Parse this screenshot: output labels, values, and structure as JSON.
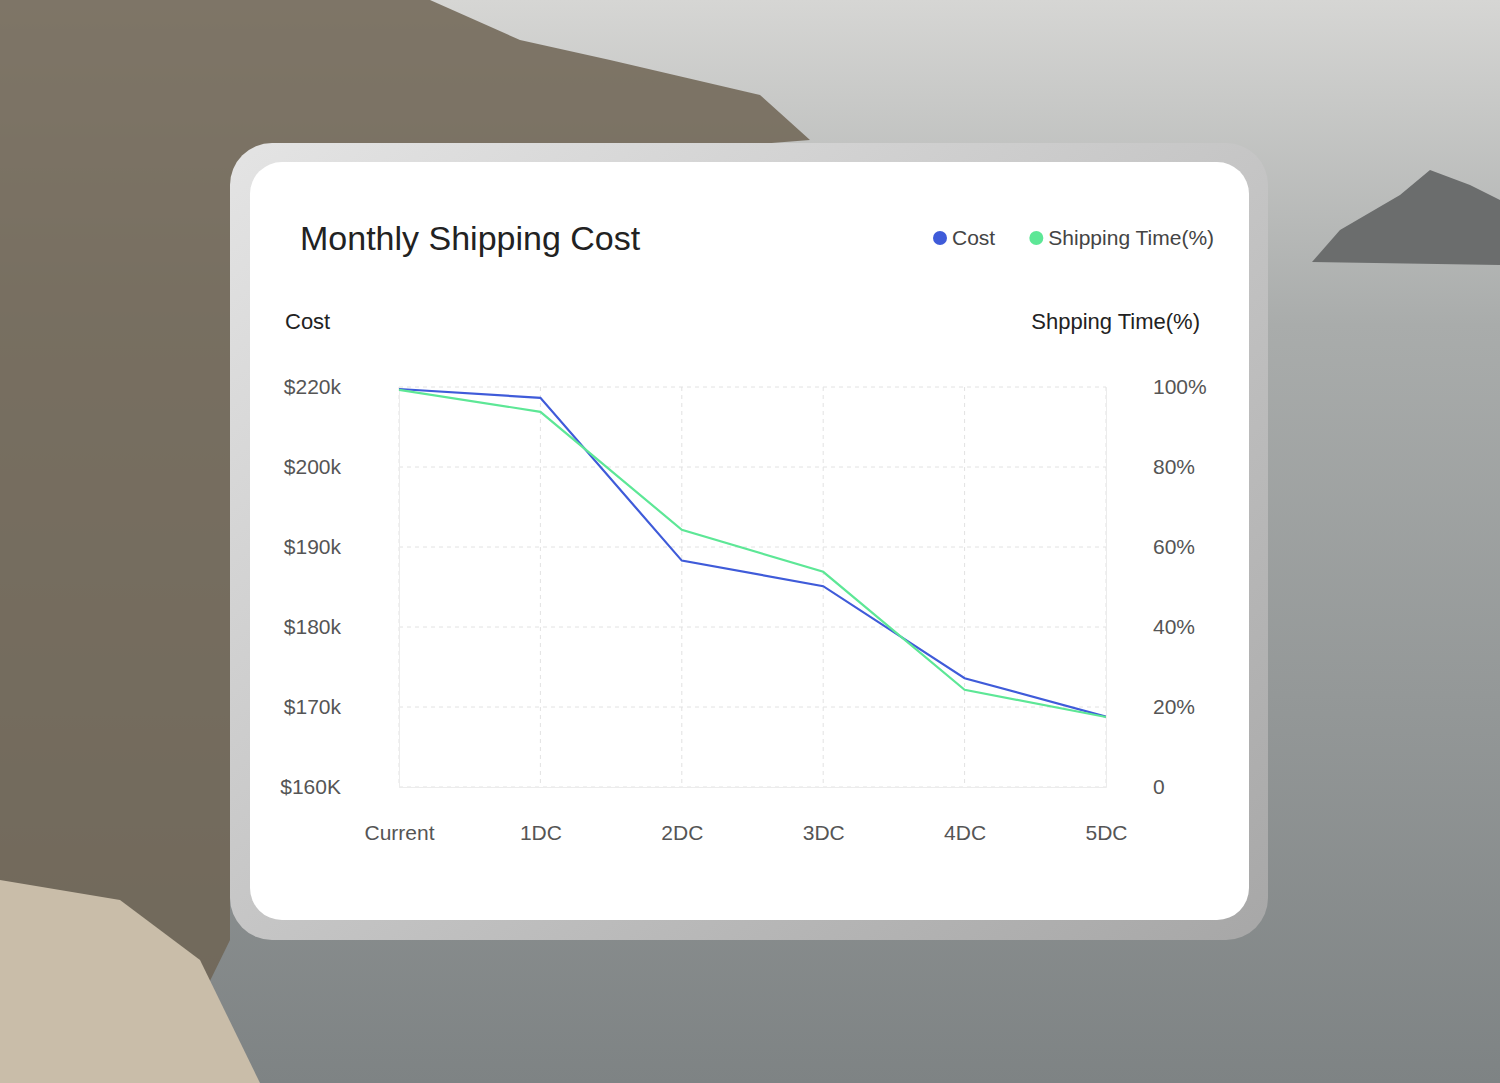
{
  "chart_data": {
    "type": "line",
    "title": "Monthly Shipping Cost",
    "y_label": "Cost",
    "y2_label": "Shpping Time(%)",
    "categories": [
      "Current",
      "1DC",
      "2DC",
      "3DC",
      "4DC",
      "5DC"
    ],
    "series": [
      {
        "name": "Cost",
        "color": "#3f5bd9",
        "values": [
          219.5,
          217.3,
          188.3,
          185.1,
          173.6,
          168.8
        ]
      },
      {
        "name": "Shipping Time(%)",
        "color": "#5de796",
        "axis": "y2",
        "values": [
          99.3,
          93.8,
          64.3,
          53.8,
          24.3,
          17.5
        ]
      }
    ],
    "ylim": [
      160,
      220
    ],
    "yticks": [
      {
        "value": 160,
        "label": "$160K"
      },
      {
        "value": 170,
        "label": "$170k"
      },
      {
        "value": 180,
        "label": "$180k"
      },
      {
        "value": 190,
        "label": "$190k"
      },
      {
        "value": 200,
        "label": "$200k"
      },
      {
        "value": 220,
        "label": "$220k"
      }
    ],
    "y2lim": [
      0,
      100
    ],
    "y2ticks": [
      0,
      {
        "value": 20,
        "label": "20%"
      },
      {
        "value": 40,
        "label": "40%"
      },
      {
        "value": 60,
        "label": "60%"
      },
      {
        "value": 80,
        "label": "80%"
      },
      {
        "value": 100,
        "label": "100%"
      }
    ],
    "grid": true,
    "legend": "top-right"
  }
}
